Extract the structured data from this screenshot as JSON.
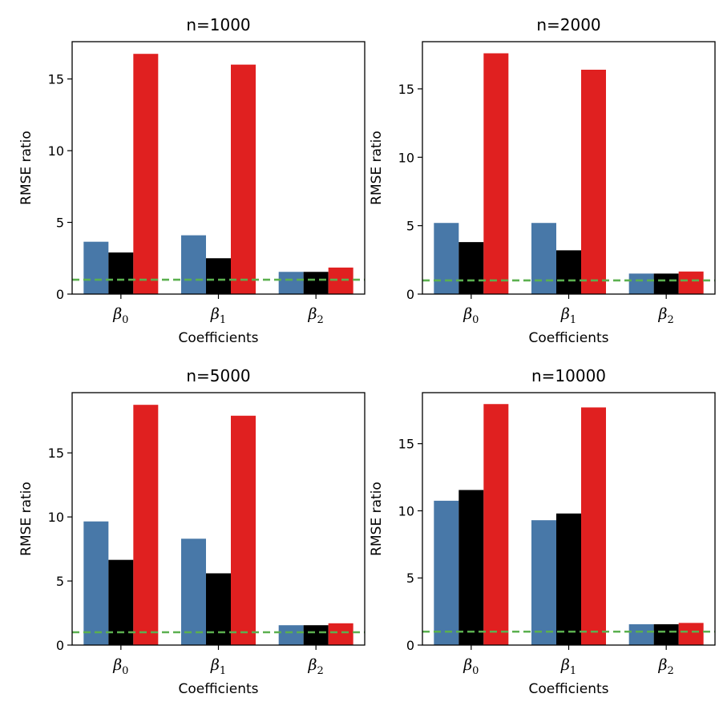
{
  "colors": {
    "series": [
      "#4878a8",
      "#000000",
      "#e02020"
    ],
    "reference_line": "#5bb04f"
  },
  "chart_data": [
    {
      "type": "bar",
      "title": "n=1000",
      "xlabel": "Coefficients",
      "ylabel": "RMSE ratio",
      "categories": [
        "β0",
        "β1",
        "β2"
      ],
      "category_labels": [
        {
          "base": "β",
          "sub": "0"
        },
        {
          "base": "β",
          "sub": "1"
        },
        {
          "base": "β",
          "sub": "2"
        }
      ],
      "series": [
        {
          "values": [
            3.65,
            4.1,
            1.55
          ]
        },
        {
          "values": [
            2.9,
            2.5,
            1.55
          ]
        },
        {
          "values": [
            16.75,
            16.0,
            1.85
          ]
        }
      ],
      "reference_line": 1.0,
      "ylim": [
        0,
        17.6
      ],
      "yticks": [
        0,
        5,
        10,
        15
      ],
      "grid": false
    },
    {
      "type": "bar",
      "title": "n=2000",
      "xlabel": "Coefficients",
      "ylabel": "RMSE ratio",
      "categories": [
        "β0",
        "β1",
        "β2"
      ],
      "category_labels": [
        {
          "base": "β",
          "sub": "0"
        },
        {
          "base": "β",
          "sub": "1"
        },
        {
          "base": "β",
          "sub": "2"
        }
      ],
      "series": [
        {
          "values": [
            5.2,
            5.2,
            1.5
          ]
        },
        {
          "values": [
            3.8,
            3.2,
            1.5
          ]
        },
        {
          "values": [
            17.6,
            16.4,
            1.65
          ]
        }
      ],
      "reference_line": 1.0,
      "ylim": [
        0,
        18.45
      ],
      "yticks": [
        0,
        5,
        10,
        15
      ],
      "grid": false
    },
    {
      "type": "bar",
      "title": "n=5000",
      "xlabel": "Coefficients",
      "ylabel": "RMSE ratio",
      "categories": [
        "β0",
        "β1",
        "β2"
      ],
      "category_labels": [
        {
          "base": "β",
          "sub": "0"
        },
        {
          "base": "β",
          "sub": "1"
        },
        {
          "base": "β",
          "sub": "2"
        }
      ],
      "series": [
        {
          "values": [
            9.65,
            8.3,
            1.55
          ]
        },
        {
          "values": [
            6.65,
            5.6,
            1.55
          ]
        },
        {
          "values": [
            18.75,
            17.9,
            1.7
          ]
        }
      ],
      "reference_line": 1.0,
      "ylim": [
        0,
        19.7
      ],
      "yticks": [
        0,
        5,
        10,
        15
      ],
      "grid": false
    },
    {
      "type": "bar",
      "title": "n=10000",
      "xlabel": "Coefficients",
      "ylabel": "RMSE ratio",
      "categories": [
        "β0",
        "β1",
        "β2"
      ],
      "category_labels": [
        {
          "base": "β",
          "sub": "0"
        },
        {
          "base": "β",
          "sub": "1"
        },
        {
          "base": "β",
          "sub": "2"
        }
      ],
      "series": [
        {
          "values": [
            10.75,
            9.3,
            1.55
          ]
        },
        {
          "values": [
            11.55,
            9.8,
            1.55
          ]
        },
        {
          "values": [
            17.95,
            17.7,
            1.65
          ]
        }
      ],
      "reference_line": 1.0,
      "ylim": [
        0,
        18.8
      ],
      "yticks": [
        0,
        5,
        10,
        15
      ],
      "grid": false
    }
  ]
}
